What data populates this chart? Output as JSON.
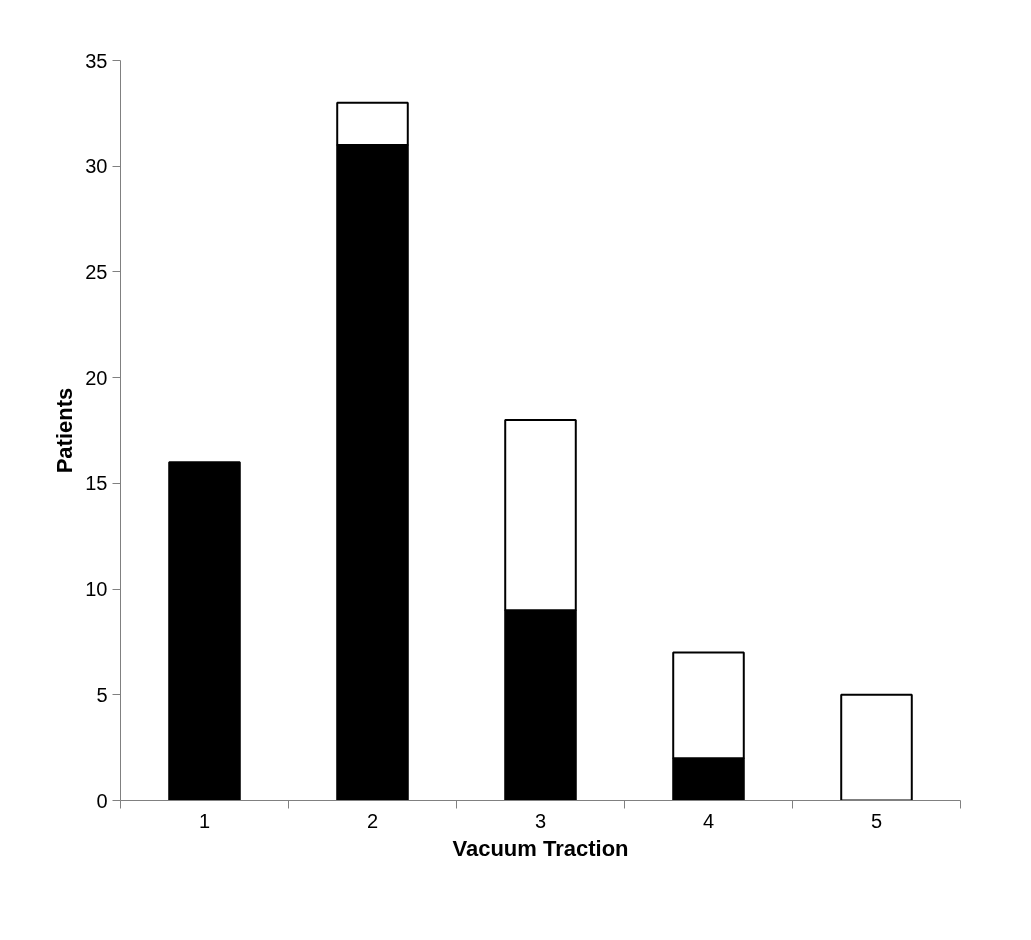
{
  "chart_data": {
    "type": "bar",
    "stacked": true,
    "xlabel": "Vacuum Traction",
    "ylabel": "Patients",
    "categories": [
      "1",
      "2",
      "3",
      "4",
      "5"
    ],
    "series": [
      {
        "color": "#000000",
        "values": [
          16,
          31,
          9,
          2,
          0
        ]
      },
      {
        "color": "#ffffff",
        "values": [
          0,
          2,
          9,
          5,
          5
        ]
      }
    ],
    "ylim": [
      0,
      35
    ],
    "yticks": [
      0,
      5,
      10,
      15,
      20,
      25,
      30,
      35
    ],
    "grid": false
  }
}
